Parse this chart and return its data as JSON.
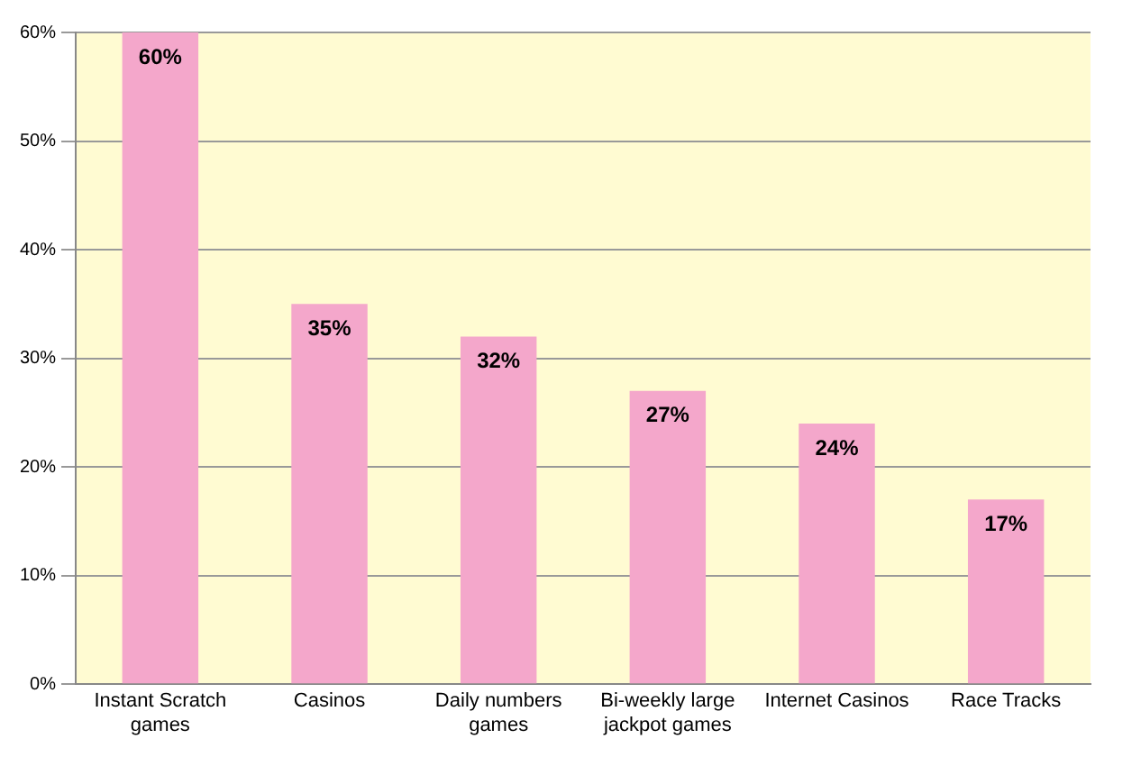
{
  "chart_data": {
    "type": "bar",
    "categories": [
      "Instant Scratch games",
      "Casinos",
      "Daily numbers games",
      "Bi-weekly large jackpot games",
      "Internet Casinos",
      "Race Tracks"
    ],
    "values": [
      60,
      35,
      32,
      27,
      24,
      17
    ],
    "value_labels": [
      "60%",
      "35%",
      "32%",
      "27%",
      "24%",
      "17%"
    ],
    "color": "#f4a7cb",
    "ylim": [
      0,
      60
    ],
    "yticks": [
      {
        "value": 0,
        "label": "0%"
      },
      {
        "value": 10,
        "label": "10%"
      },
      {
        "value": 20,
        "label": "20%"
      },
      {
        "value": 30,
        "label": "30%"
      },
      {
        "value": 40,
        "label": "40%"
      },
      {
        "value": 50,
        "label": "50%"
      },
      {
        "value": 60,
        "label": "60%"
      }
    ],
    "grid": "y"
  }
}
